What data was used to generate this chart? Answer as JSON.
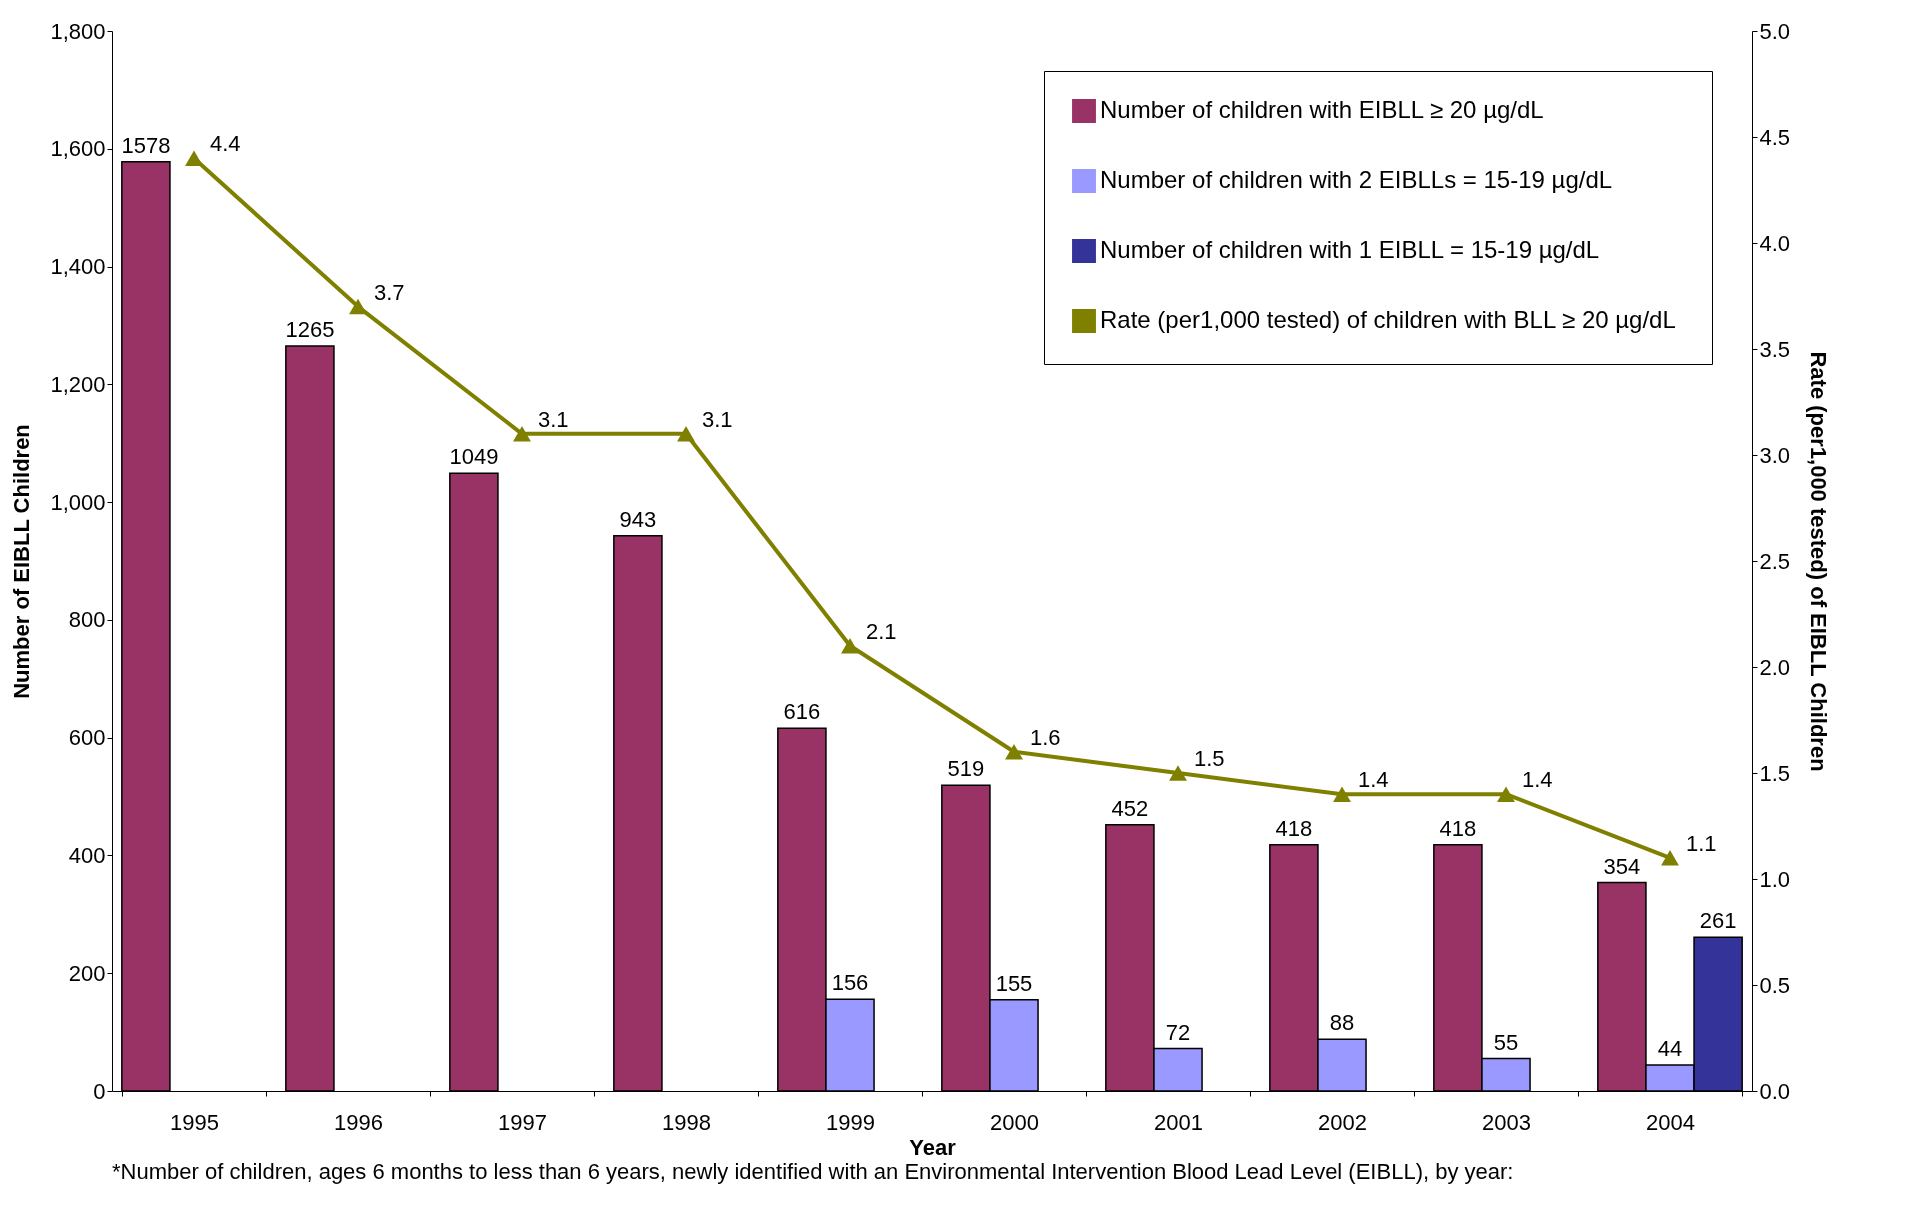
{
  "chart_data": {
    "type": "bar",
    "xlabel": "Year",
    "ylabel": "Number of EIBLL Children",
    "y2label": "Rate (per1,000 tested) of EIBLL Children",
    "categories": [
      "1995",
      "1996",
      "1997",
      "1998",
      "1999",
      "2000",
      "2001",
      "2002",
      "2003",
      "2004"
    ],
    "series": [
      {
        "name": "Number of children with EIBLL ≥  20 µg/dL",
        "color": "#993366",
        "values": [
          1578,
          1265,
          1049,
          943,
          616,
          519,
          452,
          418,
          418,
          354
        ]
      },
      {
        "name": "Number of children with 2 EIBLLs = 15-19 µg/dL",
        "color": "#9999ff",
        "values": [
          null,
          null,
          null,
          null,
          156,
          155,
          72,
          88,
          55,
          44
        ]
      },
      {
        "name": "Number of children with 1 EIBLL = 15-19 µg/dL",
        "color": "#333399",
        "values": [
          null,
          null,
          null,
          null,
          null,
          null,
          null,
          null,
          null,
          261
        ]
      },
      {
        "name": "Rate (per1,000 tested) of children with BLL ≥  20 µg/dL",
        "type": "line",
        "axis": "y2",
        "marker": "triangle",
        "color": "#808000",
        "values": [
          4.4,
          3.7,
          3.1,
          3.1,
          2.1,
          1.6,
          1.5,
          1.4,
          1.4,
          1.1
        ]
      }
    ],
    "ylim": [
      0,
      1800
    ],
    "yticks": [
      0,
      200,
      400,
      600,
      800,
      {
        "value": 1000,
        "label": "1,000"
      },
      {
        "value": 1200,
        "label": "1,200"
      },
      {
        "value": 1400,
        "label": "1,400"
      },
      {
        "value": 1600,
        "label": "1,600"
      },
      {
        "value": 1800,
        "label": "1,800"
      }
    ],
    "y2lim": [
      0,
      5
    ],
    "y2ticks": [
      {
        "value": 0,
        "label": "0.0"
      },
      0.5,
      {
        "value": 1,
        "label": "1.0"
      },
      1.5,
      {
        "value": 2,
        "label": "2.0"
      },
      2.5,
      {
        "value": 3,
        "label": "3.0"
      },
      3.5,
      {
        "value": 4,
        "label": "4.0"
      },
      4.5,
      {
        "value": 5,
        "label": "5.0"
      }
    ],
    "data_labels": true,
    "grid": false,
    "legend": "top right",
    "annotations": [
      "*Number of children, ages 6 months to less than 6 years, newly identified with an Environmental Intervention Blood Lead Level (EIBLL), by year:"
    ]
  }
}
